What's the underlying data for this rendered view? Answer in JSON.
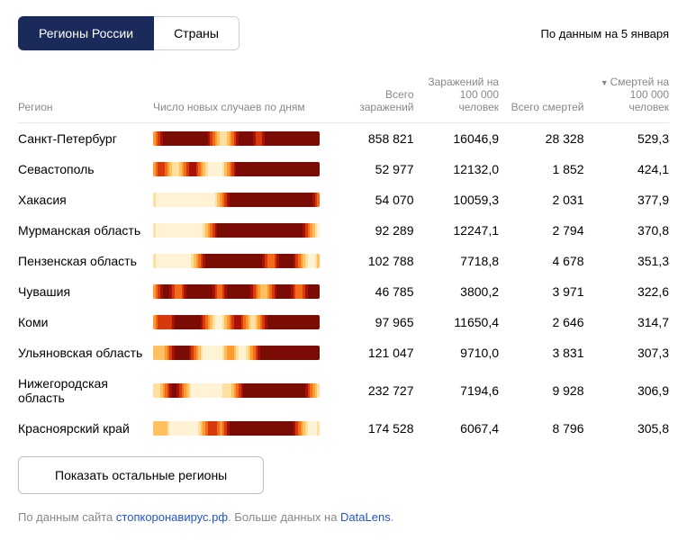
{
  "tabs": {
    "regions": "Регионы России",
    "countries": "Страны"
  },
  "date_info": "По данным на 5 января",
  "headers": {
    "region": "Регион",
    "spark": "Число новых случаев по дням",
    "total_cases": "Всего заражений",
    "cases_per_100k": "Заражений на 100 000 человек",
    "total_deaths": "Всего смертей",
    "deaths_per_100k": "Смертей на 100 000 человек"
  },
  "rows": [
    {
      "region": "Санкт-Петербург",
      "total_cases": "858 821",
      "cases_per_100k": "16046,9",
      "total_deaths": "28 328",
      "deaths_per_100k": "529,3"
    },
    {
      "region": "Севастополь",
      "total_cases": "52 977",
      "cases_per_100k": "12132,0",
      "total_deaths": "1 852",
      "deaths_per_100k": "424,1"
    },
    {
      "region": "Хакасия",
      "total_cases": "54 070",
      "cases_per_100k": "10059,3",
      "total_deaths": "2 031",
      "deaths_per_100k": "377,9"
    },
    {
      "region": "Мурманская область",
      "total_cases": "92 289",
      "cases_per_100k": "12247,1",
      "total_deaths": "2 794",
      "deaths_per_100k": "370,8"
    },
    {
      "region": "Пензенская область",
      "total_cases": "102 788",
      "cases_per_100k": "7718,8",
      "total_deaths": "4 678",
      "deaths_per_100k": "351,3"
    },
    {
      "region": "Чувашия",
      "total_cases": "46 785",
      "cases_per_100k": "3800,2",
      "total_deaths": "3 971",
      "deaths_per_100k": "322,6"
    },
    {
      "region": "Коми",
      "total_cases": "97 965",
      "cases_per_100k": "11650,4",
      "total_deaths": "2 646",
      "deaths_per_100k": "314,7"
    },
    {
      "region": "Ульяновская область",
      "total_cases": "121 047",
      "cases_per_100k": "9710,0",
      "total_deaths": "3 831",
      "deaths_per_100k": "307,3"
    },
    {
      "region": "Нижегородская область",
      "total_cases": "232 727",
      "cases_per_100k": "7194,6",
      "total_deaths": "9 928",
      "deaths_per_100k": "306,9"
    },
    {
      "region": "Красноярский край",
      "total_cases": "174 528",
      "cases_per_100k": "6067,4",
      "total_deaths": "8 796",
      "deaths_per_100k": "305,8"
    }
  ],
  "spark_palette": [
    "#fff3d6",
    "#ffe0a0",
    "#ffc060",
    "#ff9a30",
    "#f26b1a",
    "#d63a0c",
    "#a61205",
    "#7a0c03"
  ],
  "show_more_label": "Показать остальные регионы",
  "footer": {
    "prefix": "По данным сайта ",
    "link1": "стопкоронавирус.рф",
    "middle": ". Больше данных на ",
    "link2": "DataLens",
    "suffix": "."
  }
}
